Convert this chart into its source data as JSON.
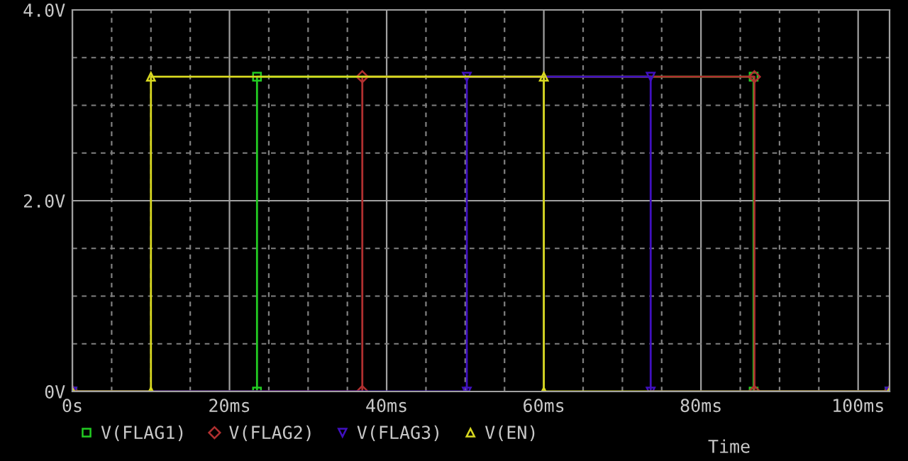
{
  "chart_data": {
    "type": "line",
    "xlabel": "Time",
    "legend": "bottom",
    "grid": true,
    "line_style": "solid",
    "xlim": [
      0,
      104
    ],
    "ylim": [
      0,
      4
    ],
    "xticks": [
      {
        "value": 0,
        "label": "0s"
      },
      {
        "value": 5,
        "label": null
      },
      {
        "value": 10,
        "label": null
      },
      {
        "value": 15,
        "label": null
      },
      {
        "value": 20,
        "label": "20ms"
      },
      {
        "value": 25,
        "label": null
      },
      {
        "value": 30,
        "label": null
      },
      {
        "value": 35,
        "label": null
      },
      {
        "value": 40,
        "label": "40ms"
      },
      {
        "value": 45,
        "label": null
      },
      {
        "value": 50,
        "label": null
      },
      {
        "value": 55,
        "label": null
      },
      {
        "value": 60,
        "label": "60ms"
      },
      {
        "value": 65,
        "label": null
      },
      {
        "value": 70,
        "label": null
      },
      {
        "value": 75,
        "label": null
      },
      {
        "value": 80,
        "label": "80ms"
      },
      {
        "value": 85,
        "label": null
      },
      {
        "value": 90,
        "label": null
      },
      {
        "value": 95,
        "label": null
      },
      {
        "value": 100,
        "label": "100ms"
      }
    ],
    "yticks": [
      {
        "value": 0,
        "label": "0V"
      },
      {
        "value": 0.5,
        "label": null
      },
      {
        "value": 1,
        "label": null
      },
      {
        "value": 1.5,
        "label": null
      },
      {
        "value": 2,
        "label": "2.0V"
      },
      {
        "value": 2.5,
        "label": null
      },
      {
        "value": 3,
        "label": null
      },
      {
        "value": 3.5,
        "label": null
      },
      {
        "value": 4,
        "label": "4.0V"
      }
    ],
    "series": [
      {
        "name": "V(FLAG1)",
        "color": "#22cc22",
        "marker": "square",
        "x": [
          0,
          23.5,
          23.5,
          86.7,
          86.7,
          104
        ],
        "values": [
          0,
          0,
          3.3,
          3.3,
          0,
          0
        ]
      },
      {
        "name": "V(FLAG2)",
        "color": "#b03030",
        "marker": "diamond",
        "x": [
          0,
          36.9,
          36.9,
          86.8,
          86.8,
          104
        ],
        "values": [
          0,
          0,
          3.3,
          3.3,
          0,
          0
        ]
      },
      {
        "name": "V(FLAG3)",
        "color": "#4010c0",
        "marker": "triangle_down",
        "x": [
          0,
          50.2,
          50.2,
          73.6,
          73.6,
          104
        ],
        "values": [
          0,
          0,
          3.3,
          3.3,
          0,
          0
        ]
      },
      {
        "name": "V(EN)",
        "color": "#d8d820",
        "marker": "triangle",
        "x": [
          0,
          10,
          10,
          60,
          60,
          104
        ],
        "values": [
          0,
          0,
          3.3,
          3.3,
          0,
          0
        ]
      }
    ]
  }
}
